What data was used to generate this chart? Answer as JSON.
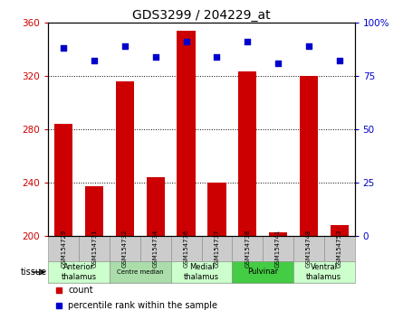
{
  "title": "GDS3299 / 204229_at",
  "samples": [
    "GSM154729",
    "GSM154731",
    "GSM154732",
    "GSM154734",
    "GSM154736",
    "GSM154737",
    "GSM154738",
    "GSM154741",
    "GSM154748",
    "GSM154753"
  ],
  "counts": [
    284,
    237,
    316,
    244,
    354,
    240,
    323,
    203,
    320,
    208
  ],
  "percentiles": [
    88,
    82,
    89,
    84,
    91,
    84,
    91,
    81,
    89,
    82
  ],
  "ylim_left": [
    200,
    360
  ],
  "ylim_right": [
    0,
    100
  ],
  "yticks_left": [
    200,
    240,
    280,
    320,
    360
  ],
  "yticks_right": [
    0,
    25,
    50,
    75,
    100
  ],
  "bar_color": "#cc0000",
  "dot_color": "#0000cc",
  "bar_bottom": 200,
  "groups": [
    {
      "label": "Anterior\nthalamus",
      "start": 0,
      "end": 2,
      "color": "#ccffcc"
    },
    {
      "label": "Centre median",
      "start": 2,
      "end": 4,
      "color": "#99ee99"
    },
    {
      "label": "Medial\nthalamus",
      "start": 4,
      "end": 6,
      "color": "#ccffcc"
    },
    {
      "label": "Pulvinar",
      "start": 6,
      "end": 8,
      "color": "#55dd55"
    },
    {
      "label": "Ventral\nthalamus",
      "start": 8,
      "end": 10,
      "color": "#ccffcc"
    }
  ],
  "tick_color_left": "#cc0000",
  "tick_color_right": "#0000cc",
  "legend_count_label": "count",
  "legend_percentile_label": "percentile rank within the sample",
  "sample_bg_color": "#cccccc",
  "grid_lines": [
    240,
    280,
    320
  ]
}
